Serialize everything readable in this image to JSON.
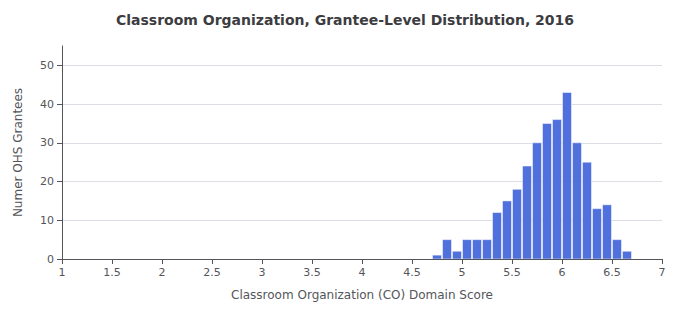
{
  "chart_data": {
    "type": "bar",
    "title": "Classroom Organization, Grantee-Level Distribution, 2016",
    "xlabel": "Classroom Organization (CO) Domain Score",
    "ylabel": "Numer OHS Grantees",
    "x": [
      4.75,
      4.85,
      4.95,
      5.05,
      5.15,
      5.25,
      5.35,
      5.45,
      5.55,
      5.65,
      5.75,
      5.85,
      5.95,
      6.05,
      6.15,
      6.25,
      6.35,
      6.45,
      6.55,
      6.65
    ],
    "values": [
      1,
      5,
      2,
      5,
      5,
      5,
      12,
      15,
      18,
      24,
      30,
      35,
      36,
      43,
      30,
      25,
      13,
      14,
      5,
      2
    ],
    "xlim": [
      1,
      7
    ],
    "xticks": [
      1,
      1.5,
      2,
      2.5,
      3,
      3.5,
      4,
      4.5,
      5,
      5.5,
      6,
      6.5,
      7
    ],
    "ylim": [
      0,
      55
    ],
    "yticks": [
      0,
      10,
      20,
      30,
      40,
      50
    ],
    "grid": true
  }
}
